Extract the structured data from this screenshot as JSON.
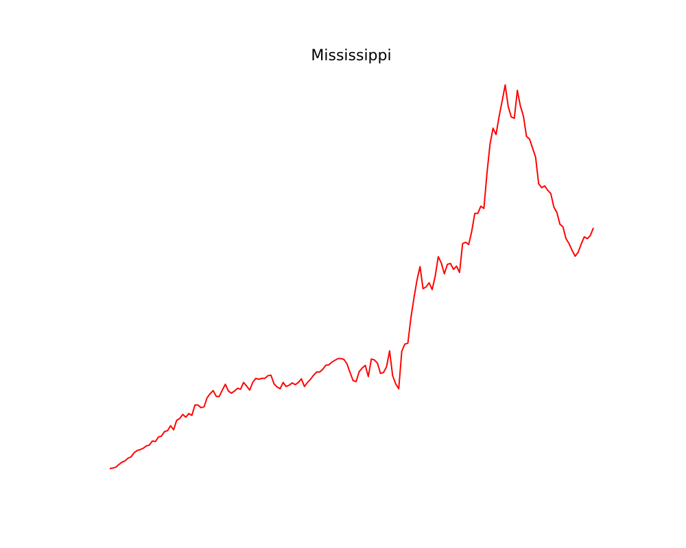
{
  "chart_data": {
    "type": "line",
    "title": "Mississippi",
    "xlabel": "",
    "ylabel": "",
    "axes_visible": false,
    "grid": false,
    "legend": "none",
    "line_color": "#ff0000",
    "series": [
      {
        "values": [
          0.5,
          0.6,
          0.8,
          1.4,
          1.9,
          2.2,
          2.8,
          3.1,
          4.0,
          4.5,
          4.7,
          5.0,
          5.5,
          5.7,
          6.6,
          6.5,
          7.5,
          7.7,
          8.7,
          8.9,
          10.0,
          9.1,
          11.2,
          11.6,
          12.5,
          11.9,
          12.7,
          12.3,
          14.6,
          14.6,
          14.0,
          14.2,
          16.2,
          17.1,
          17.8,
          16.5,
          16.5,
          17.9,
          19.2,
          17.7,
          17.2,
          17.7,
          18.3,
          18.1,
          19.6,
          18.8,
          17.9,
          19.6,
          20.5,
          20.3,
          20.5,
          20.5,
          21.1,
          21.2,
          19.3,
          18.6,
          18.2,
          19.6,
          18.7,
          19.0,
          19.5,
          19.1,
          19.6,
          20.4,
          18.7,
          19.6,
          20.3,
          21.2,
          21.9,
          21.9,
          22.5,
          23.4,
          23.5,
          24.1,
          24.5,
          24.9,
          24.9,
          24.7,
          23.7,
          21.8,
          20.0,
          19.8,
          22.0,
          22.8,
          23.4,
          20.9,
          24.8,
          24.6,
          23.9,
          21.6,
          21.8,
          23.1,
          26.6,
          21.1,
          19.3,
          18.2,
          26.5,
          28.1,
          28.3,
          33.9,
          38.3,
          42.3,
          45.3,
          40.4,
          40.8,
          41.7,
          40.2,
          43.2,
          47.5,
          46.1,
          43.7,
          45.8,
          46.0,
          44.7,
          45.4,
          44.0,
          50.4,
          50.7,
          50.2,
          53.1,
          57.1,
          57.1,
          58.7,
          58.2,
          65.9,
          72.4,
          76.0,
          74.6,
          78.6,
          82.0,
          85.6,
          80.8,
          78.5,
          78.2,
          84.4,
          80.9,
          78.7,
          74.2,
          73.6,
          71.6,
          69.6,
          63.7,
          62.8,
          63.2,
          62.2,
          61.5,
          58.5,
          57.3,
          54.7,
          54.1,
          51.5,
          50.4,
          48.9,
          47.6,
          48.5,
          50.3,
          51.9,
          51.5,
          52.2,
          53.9
        ]
      }
    ]
  }
}
